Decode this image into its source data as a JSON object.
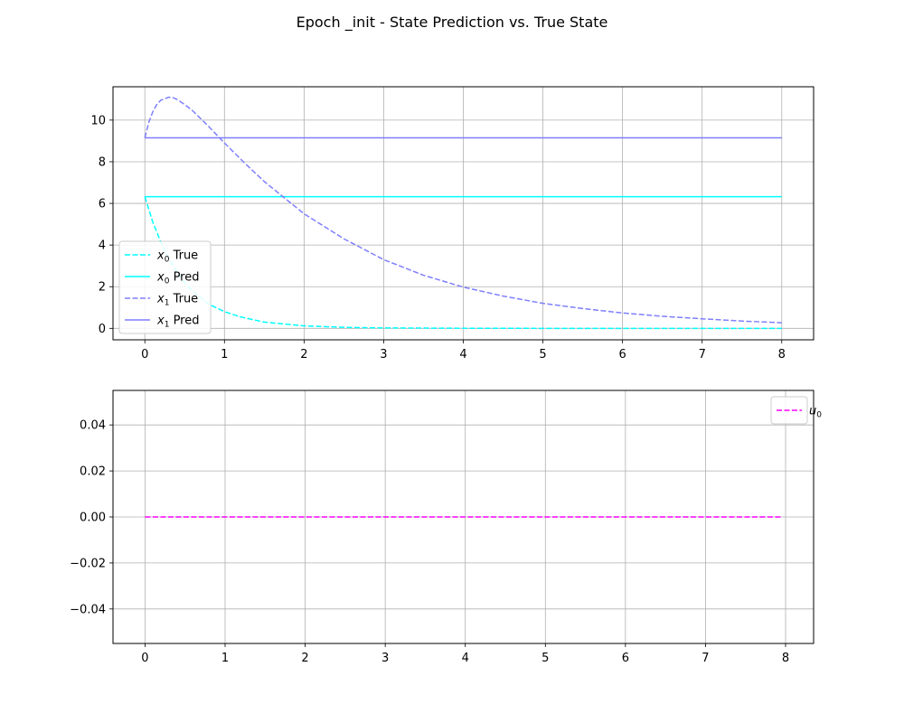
{
  "figure": {
    "title": "Epoch _init - State Prediction vs. True State"
  },
  "colors": {
    "x0": "#00ffff",
    "x1": "#7f7fff",
    "u0": "#ff00ff",
    "grid": "#b0b0b0",
    "axis": "#000000"
  },
  "chart_data": [
    {
      "type": "line",
      "title": "",
      "xlabel": "",
      "ylabel": "",
      "xlim": [
        -0.4,
        8.4
      ],
      "ylim": [
        -0.55,
        11.6
      ],
      "xticks": [
        0,
        1,
        2,
        3,
        4,
        5,
        6,
        7,
        8
      ],
      "yticks": [
        0,
        2,
        4,
        6,
        8,
        10
      ],
      "grid": true,
      "legend_position": "lower-left",
      "series": [
        {
          "name": "$x_0$ True",
          "legend_base": "x",
          "legend_sub": "0",
          "legend_suffix": " True",
          "color": "#00ffff",
          "style": "dashed",
          "x": [
            0,
            0.1,
            0.2,
            0.3,
            0.4,
            0.5,
            0.6,
            0.8,
            1,
            1.2,
            1.5,
            2,
            2.5,
            3,
            4,
            5,
            6,
            7,
            8
          ],
          "y": [
            6.32,
            5.1,
            4.15,
            3.35,
            2.72,
            2.2,
            1.78,
            1.17,
            0.8,
            0.55,
            0.3,
            0.12,
            0.05,
            0.02,
            0.005,
            0,
            0,
            0,
            0
          ]
        },
        {
          "name": "$x_0$ Pred",
          "legend_base": "x",
          "legend_sub": "0",
          "legend_suffix": " Pred",
          "color": "#00ffff",
          "style": "solid",
          "x": [
            0,
            8
          ],
          "y": [
            6.32,
            6.32
          ]
        },
        {
          "name": "$x_1$ True",
          "legend_base": "x",
          "legend_sub": "1",
          "legend_suffix": " True",
          "color": "#7f7fff",
          "style": "dashed",
          "x": [
            0,
            0.05,
            0.1,
            0.15,
            0.2,
            0.3,
            0.35,
            0.4,
            0.5,
            0.6,
            0.8,
            1,
            1.25,
            1.5,
            2,
            2.5,
            3,
            3.5,
            4,
            4.5,
            5,
            5.5,
            6,
            6.5,
            7,
            7.5,
            8
          ],
          "y": [
            9.15,
            9.9,
            10.4,
            10.75,
            10.95,
            11.1,
            11.08,
            11.0,
            10.75,
            10.45,
            9.7,
            8.9,
            7.95,
            7.05,
            5.5,
            4.3,
            3.3,
            2.55,
            1.98,
            1.55,
            1.2,
            0.95,
            0.74,
            0.58,
            0.46,
            0.35,
            0.27
          ]
        },
        {
          "name": "$x_1$ Pred",
          "legend_base": "x",
          "legend_sub": "1",
          "legend_suffix": " Pred",
          "color": "#7f7fff",
          "style": "solid",
          "x": [
            0,
            8
          ],
          "y": [
            9.15,
            9.15
          ]
        }
      ]
    },
    {
      "type": "line",
      "title": "",
      "xlabel": "",
      "ylabel": "",
      "xlim": [
        -0.4,
        8.35
      ],
      "ylim": [
        -0.055,
        0.055
      ],
      "xticks": [
        0,
        1,
        2,
        3,
        4,
        5,
        6,
        7,
        8
      ],
      "xtick_labels": [
        "0",
        "1",
        "2",
        "3",
        "4",
        "5",
        "6",
        "7",
        "8"
      ],
      "yticks": [
        -0.04,
        -0.02,
        0.0,
        0.02,
        0.04
      ],
      "ytick_labels": [
        "−0.04",
        "−0.02",
        "0.00",
        "0.02",
        "0.04"
      ],
      "grid": true,
      "legend_position": "upper-right",
      "series": [
        {
          "name": "$u_0$",
          "legend_base": "u",
          "legend_sub": "0",
          "legend_suffix": "",
          "color": "#ff00ff",
          "style": "dashed",
          "x": [
            0,
            7.95
          ],
          "y": [
            0,
            0
          ]
        }
      ]
    }
  ]
}
